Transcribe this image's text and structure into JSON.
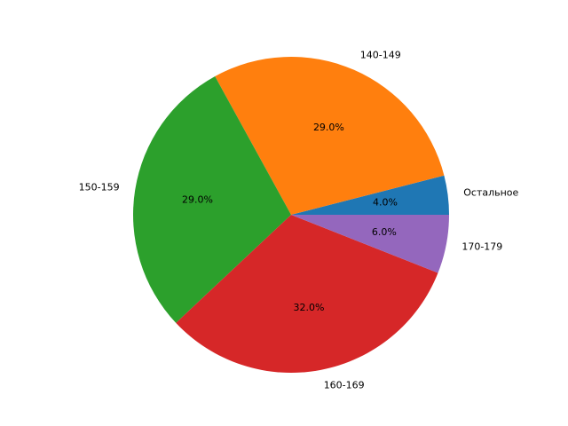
{
  "chart_data": {
    "type": "pie",
    "categories": [
      "Остальное",
      "140-149",
      "150-159",
      "160-169",
      "170-179"
    ],
    "values": [
      4,
      29,
      29,
      32,
      6
    ],
    "value_labels": [
      "4.0%",
      "29.0%",
      "29.0%",
      "32.0%",
      "6.0%"
    ],
    "colors": [
      "#1f77b4",
      "#ff7f0e",
      "#2ca02c",
      "#d62728",
      "#9467bd"
    ]
  }
}
